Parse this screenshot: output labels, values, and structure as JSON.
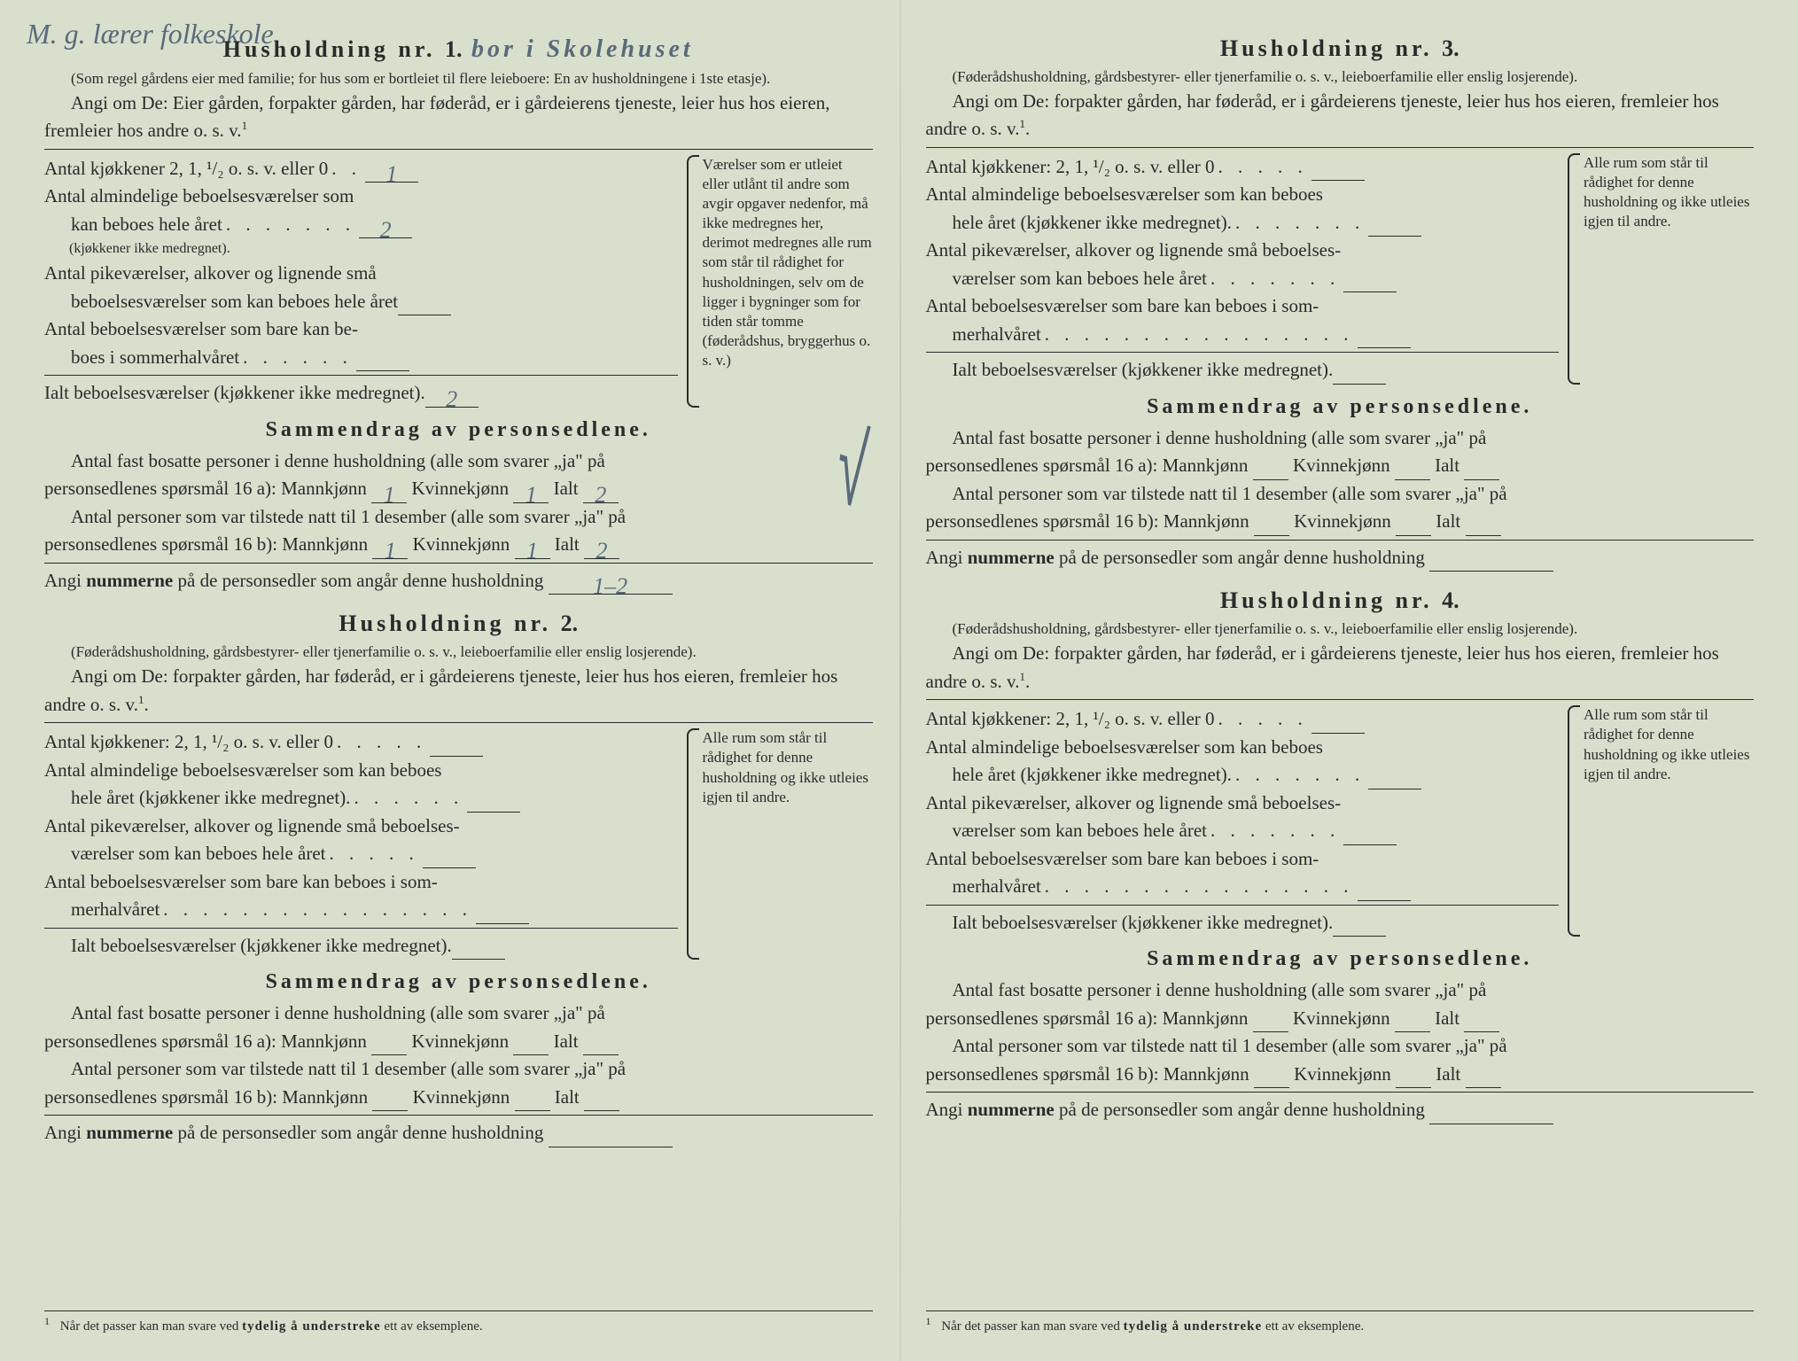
{
  "colors": {
    "paper": "#d8e0cd",
    "ink": "#2a2a2a",
    "pencil": "#5a6a7a"
  },
  "handwriting_top": "M. g. lærer folkeskole",
  "households": [
    {
      "title_prefix": "Husholdning nr.",
      "number": "1.",
      "handwritten_title_suffix": "bor i Skolehuset",
      "note": "(Som regel gårdens eier med familie; for hus som er bortleiet til flere leieboere: En av husholdningene i 1ste etasje).",
      "angi": "Angi om De: Eier gården, forpakter gården, har føderåd, er i gårdeierens tjeneste, leier hus hos eieren, fremleier hos andre o. s. v.",
      "rows": {
        "kitchens_label": "Antal kjøkkener 2, 1, ¹/₂ o. s. v. eller 0",
        "kitchens_value": "1",
        "rooms_label_a": "Antal almindelige beboelsesværelser som",
        "rooms_label_b": "kan beboes hele året",
        "rooms_subnote": "(kjøkkener ikke medregnet).",
        "rooms_value": "2",
        "alcove_label_a": "Antal pikeværelser, alkover og lignende små",
        "alcove_label_b": "beboelsesværelser som kan beboes hele året",
        "alcove_value": "",
        "summer_label_a": "Antal beboelsesværelser som bare kan be-",
        "summer_label_b": "boes i sommerhalvåret",
        "summer_value": "",
        "total_label": "Ialt beboelsesværelser (kjøkkener ikke medregnet).",
        "total_value": "2"
      },
      "side_note": "Værelser som er utleiet eller utlånt til andre som avgir opgaver nedenfor, må ikke medregnes her, derimot medregnes alle rum som står til rådighet for husholdningen, selv om de ligger i bygninger som for tiden står tomme (føderådshus, bryggerhus o. s. v.)",
      "summary_title": "Sammendrag av personsedlene.",
      "summary": {
        "line1a": "Antal fast bosatte personer i denne husholdning (alle som svarer „ja\" på",
        "line1b_prefix": "personsedlenes spørsmål 16 a): Mannkjønn",
        "male_a": "1",
        "female_label": "Kvinnekjønn",
        "female_a": "1",
        "total_label": "Ialt",
        "total_a": "2",
        "line2a": "Antal personer som var tilstede natt til 1 desember (alle som svarer „ja\" på",
        "line2b_prefix": "personsedlenes spørsmål 16 b): Mannkjønn",
        "male_b": "1",
        "female_b": "1",
        "total_b": "2",
        "numline_prefix": "Angi",
        "numline_bold": "nummerne",
        "numline_suffix": "på de personsedler som angår denne husholdning",
        "numline_value": "1–2"
      }
    },
    {
      "title_prefix": "Husholdning nr.",
      "number": "2.",
      "note": "(Føderådshusholdning, gårdsbestyrer- eller tjenerfamilie o. s. v., leieboerfamilie eller enslig losjerende).",
      "angi": "Angi om De: forpakter gården, har føderåd, er i gårdeierens tjeneste, leier hus hos eieren, fremleier hos andre o. s. v.",
      "rows": {
        "kitchens_label": "Antal kjøkkener: 2, 1, ¹/₂ o. s. v. eller 0",
        "rooms_label_a": "Antal almindelige beboelsesværelser som kan beboes",
        "rooms_label_b": "hele året (kjøkkener ikke medregnet).",
        "alcove_label_a": "Antal pikeværelser, alkover og lignende små beboelses-",
        "alcove_label_b": "værelser som kan beboes hele året",
        "summer_label_a": "Antal beboelsesværelser som bare kan beboes i som-",
        "summer_label_b": "merhalvåret",
        "total_label": "Ialt beboelsesværelser  (kjøkkener ikke medregnet)."
      },
      "side_note": "Alle rum som står til rådighet for denne husholdning og ikke utleies igjen til andre.",
      "summary_title": "Sammendrag av personsedlene.",
      "summary": {
        "line1a": "Antal fast bosatte personer i denne husholdning (alle som svarer „ja\" på",
        "line1b_prefix": "personsedlenes spørsmål 16 a): Mannkjønn",
        "female_label": "Kvinnekjønn",
        "total_label": "Ialt",
        "line2a": "Antal personer som var tilstede natt til 1 desember (alle som svarer „ja\" på",
        "line2b_prefix": "personsedlenes spørsmål 16 b): Mannkjønn",
        "numline_prefix": "Angi",
        "numline_bold": "nummerne",
        "numline_suffix": "på de personsedler som angår denne husholdning"
      }
    },
    {
      "title_prefix": "Husholdning nr.",
      "number": "3.",
      "note": "(Føderådshusholdning, gårdsbestyrer- eller tjenerfamilie o. s. v., leieboerfamilie eller enslig losjerende).",
      "angi": "Angi om De: forpakter gården, har føderåd, er i gårdeierens tjeneste, leier hus hos eieren, fremleier hos andre o. s. v.",
      "rows": {
        "kitchens_label": "Antal kjøkkener: 2, 1, ¹/₂ o. s. v. eller 0",
        "rooms_label_a": "Antal almindelige beboelsesværelser som kan beboes",
        "rooms_label_b": "hele året (kjøkkener ikke medregnet).",
        "alcove_label_a": "Antal pikeværelser, alkover og lignende små beboelses-",
        "alcove_label_b": "værelser som kan beboes hele året",
        "summer_label_a": "Antal beboelsesværelser som bare kan beboes i som-",
        "summer_label_b": "merhalvåret",
        "total_label": "Ialt beboelsesværelser (kjøkkener ikke medregnet)."
      },
      "side_note": "Alle rum som står til rådighet for denne husholdning og ikke utleies igjen til andre.",
      "summary_title": "Sammendrag av personsedlene.",
      "summary": {
        "line1a": "Antal fast bosatte personer i denne husholdning (alle som svarer „ja\" på",
        "line1b_prefix": "personsedlenes spørsmål 16 a): Mannkjønn",
        "female_label": "Kvinnekjønn",
        "total_label": "Ialt",
        "line2a": "Antal personer som var tilstede natt til 1 desember (alle som svarer „ja\" på",
        "line2b_prefix": "personsedlenes spørsmål 16 b): Mannkjønn",
        "numline_prefix": "Angi",
        "numline_bold": "nummerne",
        "numline_suffix": "på de personsedler som angår denne husholdning"
      }
    },
    {
      "title_prefix": "Husholdning nr.",
      "number": "4.",
      "note": "(Føderådshusholdning, gårdsbestyrer- eller tjenerfamilie o. s. v., leieboerfamilie eller enslig losjerende).",
      "angi": "Angi om De: forpakter gården, har føderåd, er i gårdeierens tjeneste, leier hus hos eieren, fremleier hos andre o. s. v.",
      "rows": {
        "kitchens_label": "Antal kjøkkener: 2, 1, ¹/₂ o. s. v. eller 0",
        "rooms_label_a": "Antal almindelige beboelsesværelser som kan beboes",
        "rooms_label_b": "hele året (kjøkkener ikke medregnet).",
        "alcove_label_a": "Antal pikeværelser, alkover og lignende små beboelses-",
        "alcove_label_b": "værelser som kan beboes hele året",
        "summer_label_a": "Antal beboelsesværelser som bare kan beboes i som-",
        "summer_label_b": "merhalvåret",
        "total_label": "Ialt beboelsesværelser  (kjøkkener ikke medregnet)."
      },
      "side_note": "Alle rum som står til rådighet for denne husholdning og ikke utleies igjen til andre.",
      "summary_title": "Sammendrag av personsedlene.",
      "summary": {
        "line1a": "Antal fast bosatte personer i denne husholdning (alle som svarer „ja\" på",
        "line1b_prefix": "personsedlenes spørsmål 16 a): Mannkjønn",
        "female_label": "Kvinnekjønn",
        "total_label": "Ialt",
        "line2a": "Antal personer som var tilstede natt til 1 desember (alle som svarer „ja\" på",
        "line2b_prefix": "personsedlenes spørsmål 16 b): Mannkjønn",
        "numline_prefix": "Angi",
        "numline_bold": "nummerne",
        "numline_suffix": "på de personsedler som angår denne husholdning"
      }
    }
  ],
  "footnote": {
    "num": "1",
    "text_a": "Når det passer kan man svare ved ",
    "text_bold": "tydelig å understreke",
    "text_b": " ett av eksemplene."
  }
}
